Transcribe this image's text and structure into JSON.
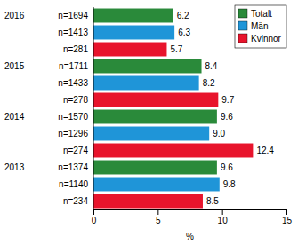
{
  "chart_data": {
    "type": "bar",
    "orientation": "horizontal",
    "data_labels": true,
    "grid": false,
    "legend": "upper right",
    "categories": [
      "2016",
      "2015",
      "2014",
      "2013"
    ],
    "xlabel": "%",
    "xlim": [
      0,
      15
    ],
    "xticks": [
      0,
      5,
      10,
      15
    ],
    "series": [
      {
        "name": "Totalt",
        "color": "#2a8a3a",
        "values": [
          6.2,
          8.4,
          9.6,
          9.6
        ],
        "value_labels": [
          "6.2",
          "8.4",
          "9.6",
          "9.6"
        ],
        "n_labels": [
          "n=1694",
          "n=1711",
          "n=1570",
          "n=1374"
        ]
      },
      {
        "name": "Män",
        "color": "#1f95d8",
        "values": [
          6.3,
          8.2,
          9.0,
          9.8
        ],
        "value_labels": [
          "6.3",
          "8.2",
          "9.0",
          "9.8"
        ],
        "n_labels": [
          "n=1413",
          "n=1433",
          "n=1296",
          "n=1140"
        ]
      },
      {
        "name": "Kvinnor",
        "color": "#e8142c",
        "values": [
          5.7,
          9.7,
          12.4,
          8.5
        ],
        "value_labels": [
          "5.7",
          "9.7",
          "12.4",
          "8.5"
        ],
        "n_labels": [
          "n=281",
          "n=278",
          "n=274",
          "n=234"
        ]
      }
    ]
  }
}
